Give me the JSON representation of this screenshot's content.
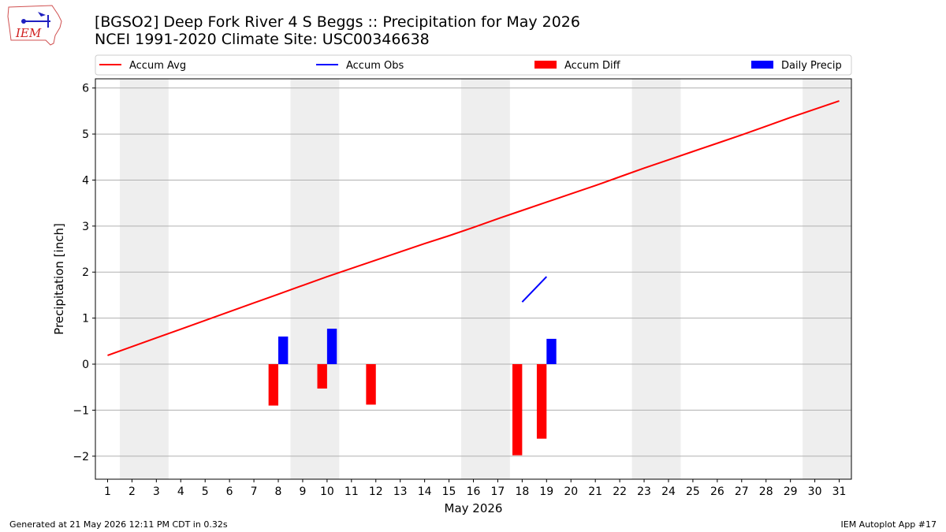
{
  "logo": {
    "text": "IEM"
  },
  "header": {
    "title_line1": "[BGSO2] Deep Fork River 4 S Beggs :: Precipitation for May 2026",
    "title_line2": "NCEI 1991-2020 Climate Site: USC00346638"
  },
  "colors": {
    "accum_avg": "#ff0000",
    "accum_obs": "#0000ff",
    "accum_diff": "#ff0000",
    "daily_precip": "#0000ff",
    "weekend_band": "#eeeeee",
    "grid": "#b0b0b0"
  },
  "chart_data": {
    "type": "bar",
    "xlabel": "May 2026",
    "ylabel": "Precipitation [inch]",
    "xlim": [
      0.5,
      31.5
    ],
    "ylim": [
      -2.5,
      6.2
    ],
    "yticks": [
      -2,
      -1,
      0,
      1,
      2,
      3,
      4,
      5,
      6
    ],
    "xticks": [
      1,
      2,
      3,
      4,
      5,
      6,
      7,
      8,
      9,
      10,
      11,
      12,
      13,
      14,
      15,
      16,
      17,
      18,
      19,
      20,
      21,
      22,
      23,
      24,
      25,
      26,
      27,
      28,
      29,
      30,
      31
    ],
    "grid": "horizontal",
    "legend_position": "top",
    "legend": [
      "Accum Avg",
      "Accum Obs",
      "Accum Diff",
      "Daily Precip"
    ],
    "weekend_days": [
      2,
      3,
      9,
      10,
      16,
      17,
      23,
      24,
      30,
      31
    ],
    "series": [
      {
        "name": "Accum Avg",
        "kind": "line",
        "x": [
          1,
          2,
          3,
          4,
          5,
          6,
          7,
          8,
          9,
          10,
          11,
          12,
          13,
          14,
          15,
          16,
          17,
          18,
          19,
          20,
          21,
          22,
          23,
          24,
          25,
          26,
          27,
          28,
          29,
          30,
          31
        ],
        "values": [
          0.19,
          0.38,
          0.57,
          0.76,
          0.95,
          1.14,
          1.33,
          1.52,
          1.71,
          1.9,
          2.08,
          2.26,
          2.44,
          2.62,
          2.79,
          2.97,
          3.16,
          3.34,
          3.52,
          3.7,
          3.88,
          4.07,
          4.26,
          4.44,
          4.62,
          4.8,
          4.98,
          5.17,
          5.36,
          5.54,
          5.72
        ]
      },
      {
        "name": "Accum Obs",
        "kind": "line",
        "x": [
          18,
          19
        ],
        "values": [
          1.35,
          1.9
        ]
      },
      {
        "name": "Accum Diff",
        "kind": "bar",
        "x": [
          8,
          10,
          12,
          18,
          19
        ],
        "values": [
          -0.9,
          -0.53,
          -0.88,
          -1.98,
          -1.62
        ]
      },
      {
        "name": "Daily Precip",
        "kind": "bar",
        "x": [
          8,
          10,
          18,
          19
        ],
        "values": [
          0.6,
          0.77,
          0.0,
          0.55
        ]
      }
    ]
  },
  "footer": {
    "left": "Generated at 21 May 2026 12:11 PM CDT in 0.32s",
    "right": "IEM Autoplot App #17"
  }
}
